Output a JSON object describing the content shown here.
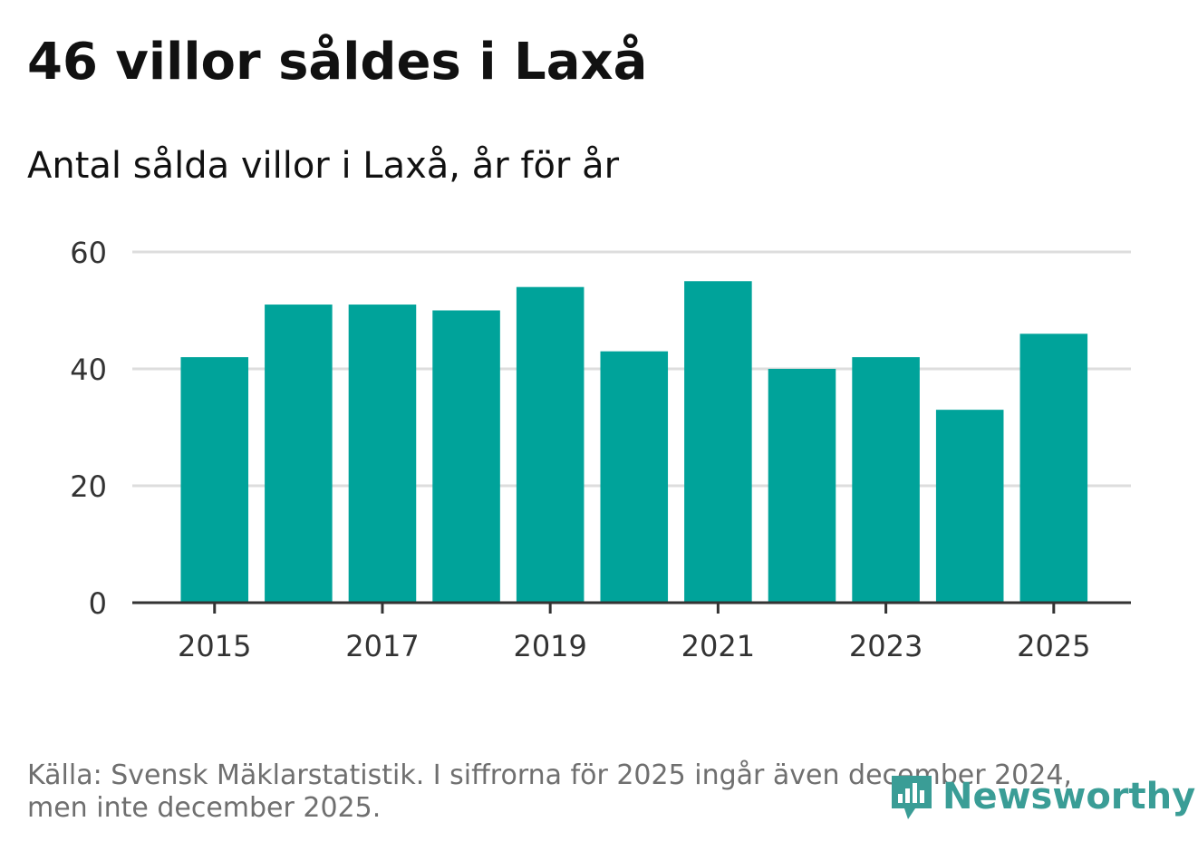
{
  "header": {
    "title": "46 villor såldes i Laxå",
    "subtitle": "Antal sålda villor i Laxå, år för år"
  },
  "footer": {
    "source_line1": "Källa: Svensk Mäklarstatistik. I siffrorna för 2025 ingår även december 2024,",
    "source_line2": "men inte december 2025.",
    "logo_text": "Newsworthy"
  },
  "colors": {
    "bar": "#00a39a",
    "grid": "#dddddd",
    "axis": "#333333",
    "logo": "#3a9d96"
  },
  "chart_data": {
    "type": "bar",
    "title": "Antal sålda villor i Laxå, år för år",
    "xlabel": "",
    "ylabel": "",
    "categories": [
      "2015",
      "2016",
      "2017",
      "2018",
      "2019",
      "2020",
      "2021",
      "2022",
      "2023",
      "2024",
      "2025"
    ],
    "values": [
      42,
      51,
      51,
      50,
      54,
      43,
      55,
      40,
      42,
      33,
      46
    ],
    "ylim": [
      0,
      60
    ],
    "yticks": [
      "0",
      "20",
      "40",
      "60"
    ],
    "xticks": [
      "2015",
      "2017",
      "2019",
      "2021",
      "2023",
      "2025"
    ],
    "grid": true
  }
}
